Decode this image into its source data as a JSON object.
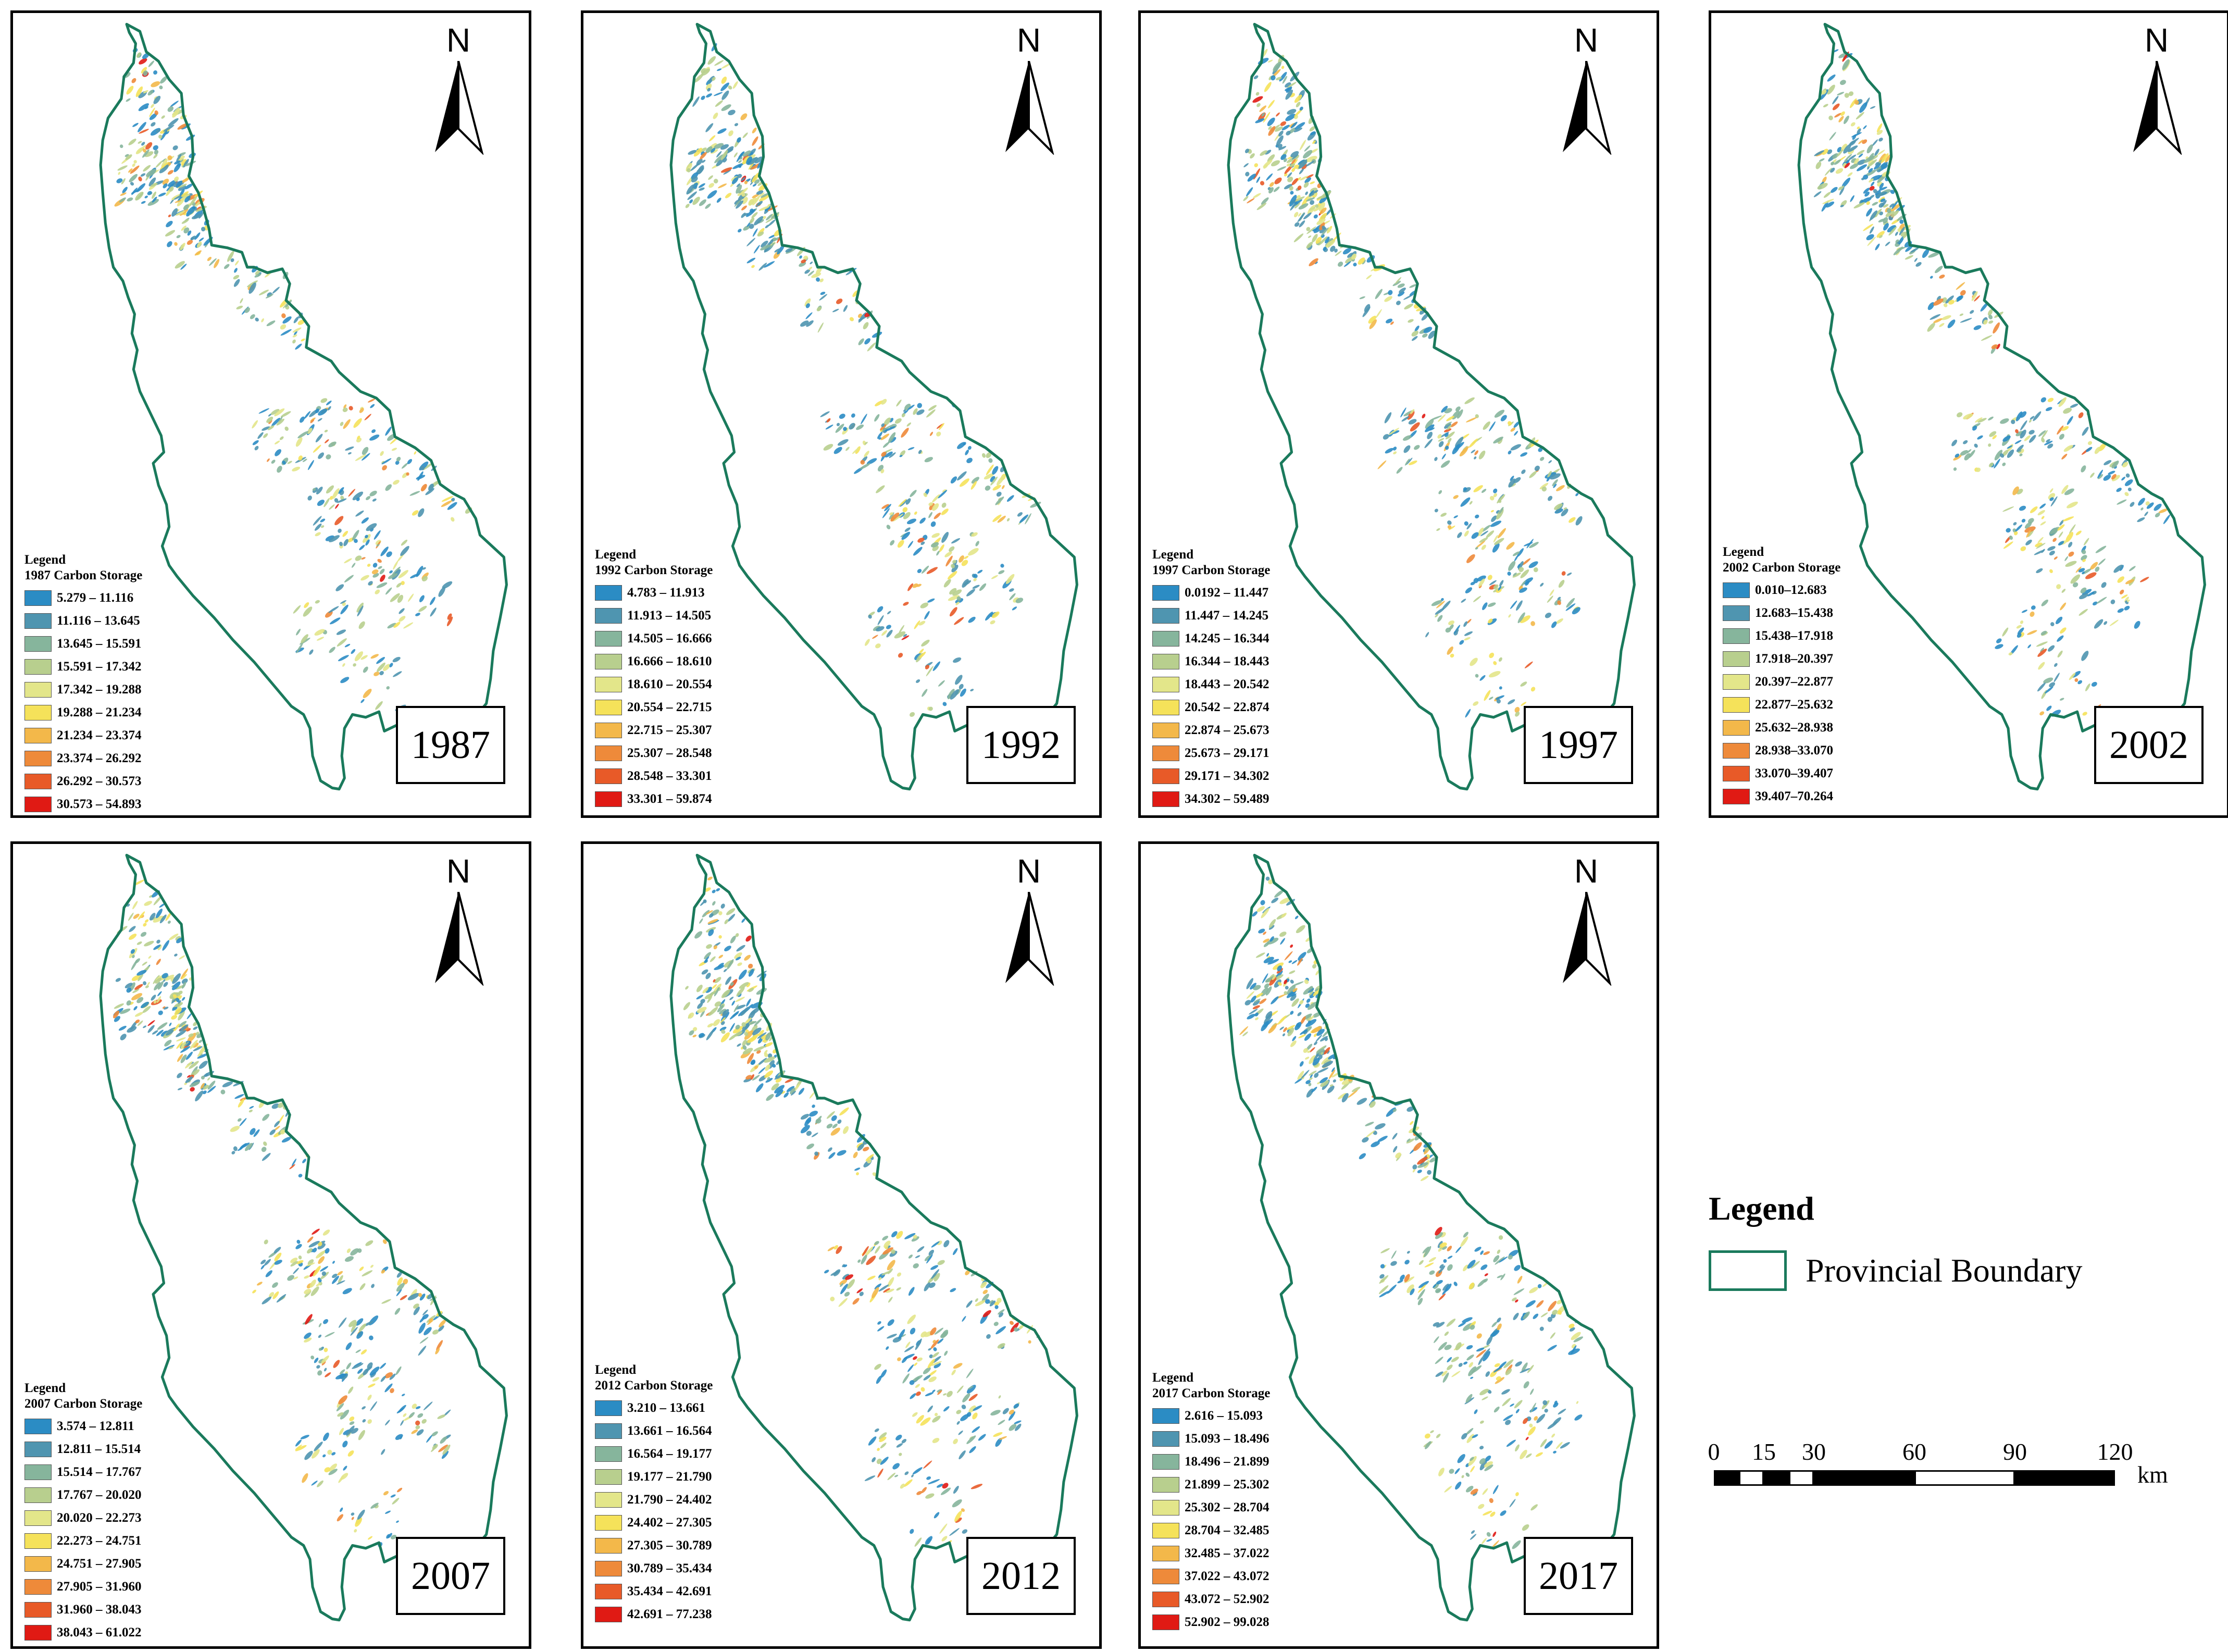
{
  "north_letter": "N",
  "panel_legend_heading": "Legend",
  "legend_colors": [
    "#2b8cc4",
    "#4f95b0",
    "#86b59c",
    "#b8cf8e",
    "#e3e68a",
    "#f5e25a",
    "#f3b84a",
    "#ee8a3a",
    "#e85a28",
    "#e01a14"
  ],
  "boundary_color": "#1a7a5c",
  "panels": [
    {
      "year": "1987",
      "title": "1987 Carbon Storage",
      "ranges": [
        "5.279 – 11.116",
        "11.116 – 13.645",
        "13.645 – 15.591",
        "15.591 – 17.342",
        "17.342 – 19.288",
        "19.288 – 21.234",
        "21.234 – 23.374",
        "23.374 – 26.292",
        "26.292 – 30.573",
        "30.573 – 54.893"
      ]
    },
    {
      "year": "1992",
      "title": "1992 Carbon Storage",
      "ranges": [
        "4.783 – 11.913",
        "11.913 – 14.505",
        "14.505 – 16.666",
        "16.666 – 18.610",
        "18.610 – 20.554",
        "20.554 – 22.715",
        "22.715 – 25.307",
        "25.307 – 28.548",
        "28.548 – 33.301",
        "33.301 – 59.874"
      ]
    },
    {
      "year": "1997",
      "title": "1997 Carbon Storage",
      "ranges": [
        "0.0192 – 11.447",
        "11.447 – 14.245",
        "14.245 – 16.344",
        "16.344 – 18.443",
        "18.443 – 20.542",
        "20.542 – 22.874",
        "22.874 – 25.673",
        "25.673 – 29.171",
        "29.171 – 34.302",
        "34.302 – 59.489"
      ]
    },
    {
      "year": "2002",
      "title": "2002 Carbon Storage",
      "ranges": [
        "0.010–12.683",
        "12.683–15.438",
        "15.438–17.918",
        "17.918–20.397",
        "20.397–22.877",
        "22.877–25.632",
        "25.632–28.938",
        "28.938–33.070",
        "33.070–39.407",
        "39.407–70.264"
      ]
    },
    {
      "year": "2007",
      "title": "2007 Carbon Storage",
      "ranges": [
        "3.574 – 12.811",
        "12.811 – 15.514",
        "15.514 – 17.767",
        "17.767 – 20.020",
        "20.020 – 22.273",
        "22.273 – 24.751",
        "24.751 – 27.905",
        "27.905 – 31.960",
        "31.960 – 38.043",
        "38.043 – 61.022"
      ]
    },
    {
      "year": "2012",
      "title": "2012 Carbon Storage",
      "ranges": [
        "3.210 – 13.661",
        "13.661 – 16.564",
        "16.564 – 19.177",
        "19.177 – 21.790",
        "21.790 – 24.402",
        "24.402 – 27.305",
        "27.305 – 30.789",
        "30.789 – 35.434",
        "35.434 – 42.691",
        "42.691 – 77.238"
      ]
    },
    {
      "year": "2017",
      "title": "2017 Carbon Storage",
      "ranges": [
        "2.616 – 15.093",
        "15.093 – 18.496",
        "18.496 – 21.899",
        "21.899 – 25.302",
        "25.302 – 28.704",
        "28.704 – 32.485",
        "32.485 – 37.022",
        "37.022 – 43.072",
        "43.072 – 52.902",
        "52.902 – 99.028"
      ]
    }
  ],
  "main_legend": {
    "title": "Legend",
    "boundary_label": "Provincial Boundary"
  },
  "scale_bar": {
    "ticks": [
      "0",
      "15",
      "30",
      "60",
      "90",
      "120"
    ],
    "unit": "km"
  }
}
